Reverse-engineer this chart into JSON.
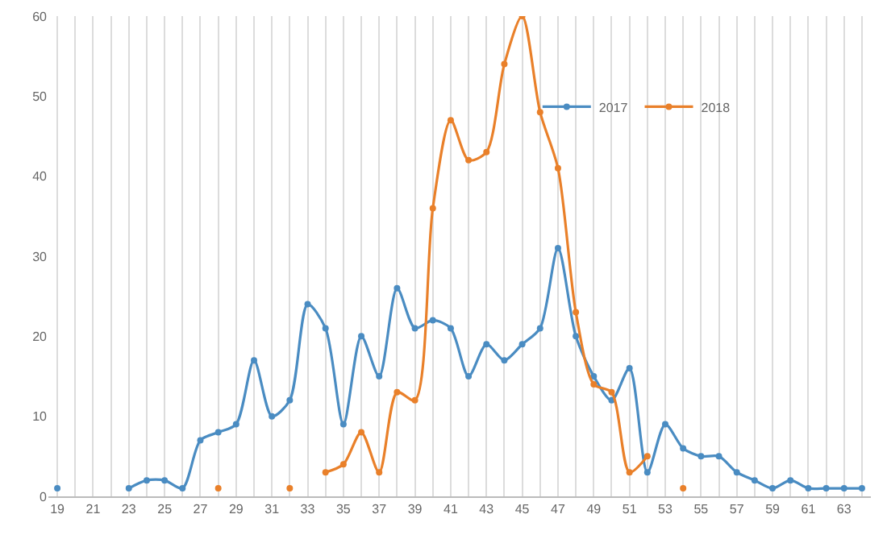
{
  "chart_data": {
    "type": "line",
    "categories": [
      "19",
      null,
      "21",
      null,
      "23",
      null,
      "25",
      null,
      "27",
      null,
      "29",
      null,
      "31",
      null,
      "33",
      null,
      "35",
      null,
      "37",
      null,
      "39",
      null,
      "41",
      null,
      "43",
      null,
      "45",
      null,
      "47",
      null,
      "49",
      null,
      "51",
      null,
      "53",
      null,
      "55",
      null,
      "57",
      null,
      "59",
      null,
      "61",
      null,
      "63",
      null
    ],
    "series": [
      {
        "name": "2017",
        "color": "#4a8cc2",
        "values": [
          1,
          null,
          null,
          null,
          1,
          2,
          2,
          1,
          7,
          8,
          9,
          17,
          10,
          12,
          24,
          21,
          9,
          20,
          15,
          26,
          21,
          22,
          21,
          15,
          19,
          17,
          19,
          21,
          31,
          20,
          15,
          12,
          16,
          3,
          9,
          6,
          5,
          5,
          3,
          2,
          1,
          2,
          1,
          1,
          1,
          1
        ]
      },
      {
        "name": "2018",
        "color": "#e9802a",
        "values": [
          null,
          null,
          null,
          null,
          null,
          null,
          null,
          null,
          null,
          1,
          null,
          null,
          null,
          1,
          null,
          3,
          4,
          8,
          3,
          13,
          12,
          36,
          47,
          42,
          43,
          54,
          60,
          48,
          41,
          23,
          14,
          13,
          3,
          5,
          null,
          1,
          null,
          null,
          null,
          null,
          null,
          null,
          null,
          null,
          null,
          null
        ]
      }
    ],
    "ylim": [
      0,
      60
    ],
    "yticks": [
      0,
      10,
      20,
      30,
      40,
      50,
      60
    ],
    "grid": "x",
    "legend": "top right",
    "marker": "circle",
    "line_style": "solid"
  }
}
